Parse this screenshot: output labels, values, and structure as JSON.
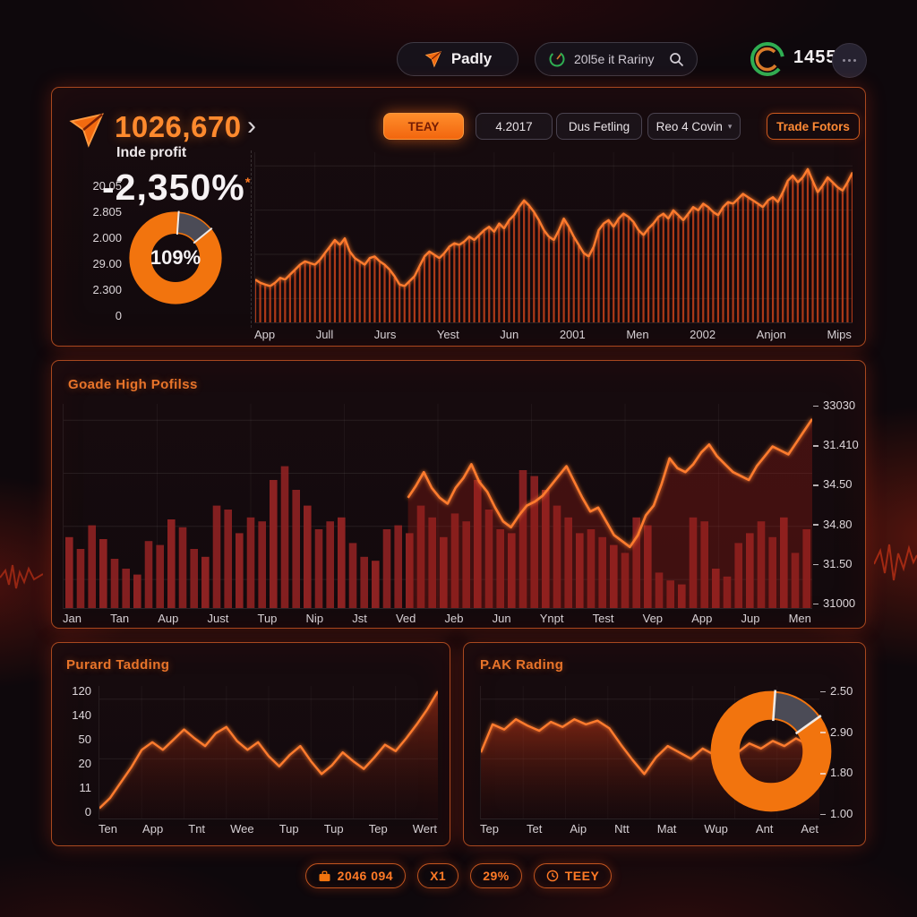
{
  "header": {
    "brand": {
      "label": "Padly",
      "icon": "paper-plane-icon"
    },
    "search": {
      "text": "20l5e it Rariny",
      "gauge_icon": "gauge-icon",
      "search_icon": "search-icon"
    },
    "clock": {
      "icon": "circular-gauge-icon",
      "time": "1455"
    }
  },
  "panel_overview": {
    "big_number": "1026,670",
    "chevron": "›",
    "subtitle": "Inde profit",
    "change": "-2,350%",
    "change_asterisk": "*",
    "filter_buttons": [
      {
        "label": "TEAY",
        "variant": "filled"
      },
      {
        "label": "4.2017",
        "variant": "ghost"
      },
      {
        "label": "Dus Fetling",
        "variant": "ghost"
      },
      {
        "label": "Reo 4 Covin",
        "variant": "ghost"
      }
    ],
    "action_button": "Trade Fotors"
  },
  "panel_profits": {
    "title": "Goade High Pofilss"
  },
  "panel_trading": {
    "title": "Purard Tadding"
  },
  "panel_rading": {
    "title": "P.AK Rading"
  },
  "footer": {
    "badges": [
      {
        "icon": "briefcase-icon",
        "label": "2046 094"
      },
      {
        "icon": null,
        "label": "X1"
      },
      {
        "icon": null,
        "label": "29%"
      },
      {
        "icon": "clock-icon",
        "label": "TEEY"
      }
    ]
  },
  "chart_data": [
    {
      "id": "overview",
      "type": "line",
      "subtype": "line-with-vertical-stripe-fill",
      "title": "Inde profit",
      "grid": true,
      "ylim": [
        0,
        100
      ],
      "y_tick_labels": [
        "20.05",
        "2.805",
        "2.000",
        "29.00",
        "2.300",
        "0"
      ],
      "x_tick_labels": [
        "App",
        "Jull",
        "Jurs",
        "Yest",
        "Jun",
        "2001",
        "Men",
        "2002",
        "Anjon",
        "Mips"
      ],
      "line_color": "#ff7b2e",
      "stripe_color": "#c2401a",
      "values": [
        26,
        24,
        23,
        22,
        24,
        27,
        26,
        29,
        32,
        35,
        37,
        36,
        35,
        38,
        42,
        46,
        50,
        47,
        51,
        43,
        39,
        37,
        35,
        39,
        40,
        37,
        35,
        32,
        28,
        23,
        22,
        25,
        28,
        34,
        40,
        43,
        41,
        39,
        42,
        46,
        48,
        47,
        49,
        52,
        50,
        53,
        56,
        58,
        55,
        60,
        57,
        62,
        65,
        70,
        74,
        71,
        67,
        62,
        56,
        52,
        50,
        56,
        63,
        58,
        52,
        47,
        42,
        40,
        46,
        56,
        60,
        62,
        58,
        63,
        66,
        64,
        61,
        56,
        53,
        57,
        60,
        64,
        66,
        63,
        68,
        65,
        62,
        66,
        70,
        68,
        72,
        70,
        67,
        65,
        70,
        73,
        72,
        75,
        78,
        76,
        74,
        72,
        70,
        74,
        76,
        73,
        79,
        86,
        89,
        85,
        88,
        93,
        86,
        79,
        83,
        88,
        85,
        82,
        80,
        85,
        91
      ],
      "donut": {
        "type": "pie",
        "center_label": "109%",
        "slices": [
          {
            "name": "main",
            "value": 87,
            "color": "#f2740e"
          },
          {
            "name": "secondary",
            "value": 13,
            "color": "#4b4b56"
          }
        ]
      }
    },
    {
      "id": "profits",
      "type": "bar",
      "title": "Goade High Pofilss",
      "grid": true,
      "ylim": [
        0,
        100
      ],
      "y_tick_labels": [
        "33030",
        "31.410",
        "34.50",
        "34.80",
        "31.50",
        "31000"
      ],
      "x_tick_labels": [
        "Jan",
        "Tan",
        "Aup",
        "Just",
        "Tup",
        "Nip",
        "Jst",
        "Ved",
        "Jeb",
        "Jun",
        "Ynpt",
        "Test",
        "Vep",
        "App",
        "Jup",
        "Men"
      ],
      "bar_color": "#8c2222",
      "bar_values": [
        36,
        30,
        42,
        35,
        25,
        20,
        17,
        34,
        32,
        45,
        41,
        30,
        26,
        52,
        50,
        38,
        46,
        44,
        65,
        72,
        60,
        52,
        40,
        44,
        46,
        33,
        26,
        24,
        40,
        42,
        38,
        52,
        46,
        36,
        48,
        44,
        65,
        50,
        40,
        38,
        70,
        67,
        60,
        52,
        46,
        38,
        40,
        36,
        32,
        28,
        46,
        42,
        18,
        14,
        12,
        46,
        44,
        20,
        16,
        33,
        38,
        44,
        36,
        46,
        28,
        40
      ],
      "line_series": {
        "name": "trend",
        "color": "#ff7b2e",
        "x_start_frac": 0.46,
        "fill_color": "rgba(150,28,22,0.35)",
        "values": [
          56,
          62,
          69,
          61,
          56,
          53,
          61,
          66,
          73,
          64,
          59,
          51,
          44,
          41,
          47,
          52,
          54,
          57,
          62,
          67,
          72,
          64,
          56,
          49,
          51,
          44,
          37,
          34,
          31,
          37,
          47,
          52,
          63,
          76,
          71,
          69,
          73,
          79,
          83,
          77,
          73,
          69,
          67,
          65,
          72,
          77,
          82,
          80,
          78,
          84,
          90,
          96
        ]
      }
    },
    {
      "id": "trading",
      "type": "area",
      "title": "Purard Tadding",
      "ylim": [
        0,
        120
      ],
      "y_tick_labels": [
        "120",
        "140",
        "50",
        "20",
        "11",
        "0"
      ],
      "x_tick_labels": [
        "Ten",
        "App",
        "Tnt",
        "Wee",
        "Tup",
        "Tup",
        "Tep",
        "Wert"
      ],
      "line_color": "#ff7b2e",
      "values": [
        8,
        16,
        28,
        40,
        54,
        60,
        54,
        62,
        70,
        63,
        57,
        67,
        72,
        61,
        54,
        60,
        49,
        41,
        50,
        57,
        45,
        35,
        42,
        52,
        45,
        39,
        48,
        58,
        53,
        63,
        74,
        86,
        100
      ]
    },
    {
      "id": "rading",
      "type": "area",
      "title": "P.AK Rading",
      "ylim": [
        1.0,
        2.5
      ],
      "y_tick_labels": [
        "2.50",
        "2.90",
        "1.80",
        "1.00"
      ],
      "x_tick_labels": [
        "Tep",
        "Tet",
        "Aip",
        "Ntt",
        "Mat",
        "Wup",
        "Ant",
        "Aet"
      ],
      "line_color": "#ff7b2e",
      "values": [
        52,
        74,
        70,
        78,
        73,
        69,
        76,
        72,
        78,
        74,
        77,
        71,
        58,
        46,
        35,
        48,
        57,
        52,
        47,
        55,
        50,
        57,
        52,
        59,
        55,
        61,
        57,
        63,
        58,
        56
      ],
      "donut": {
        "type": "pie",
        "center_label": "",
        "slices": [
          {
            "name": "main",
            "value": 86,
            "color": "#f2740e"
          },
          {
            "name": "secondary",
            "value": 14,
            "color": "#4b4b56"
          }
        ]
      }
    }
  ]
}
